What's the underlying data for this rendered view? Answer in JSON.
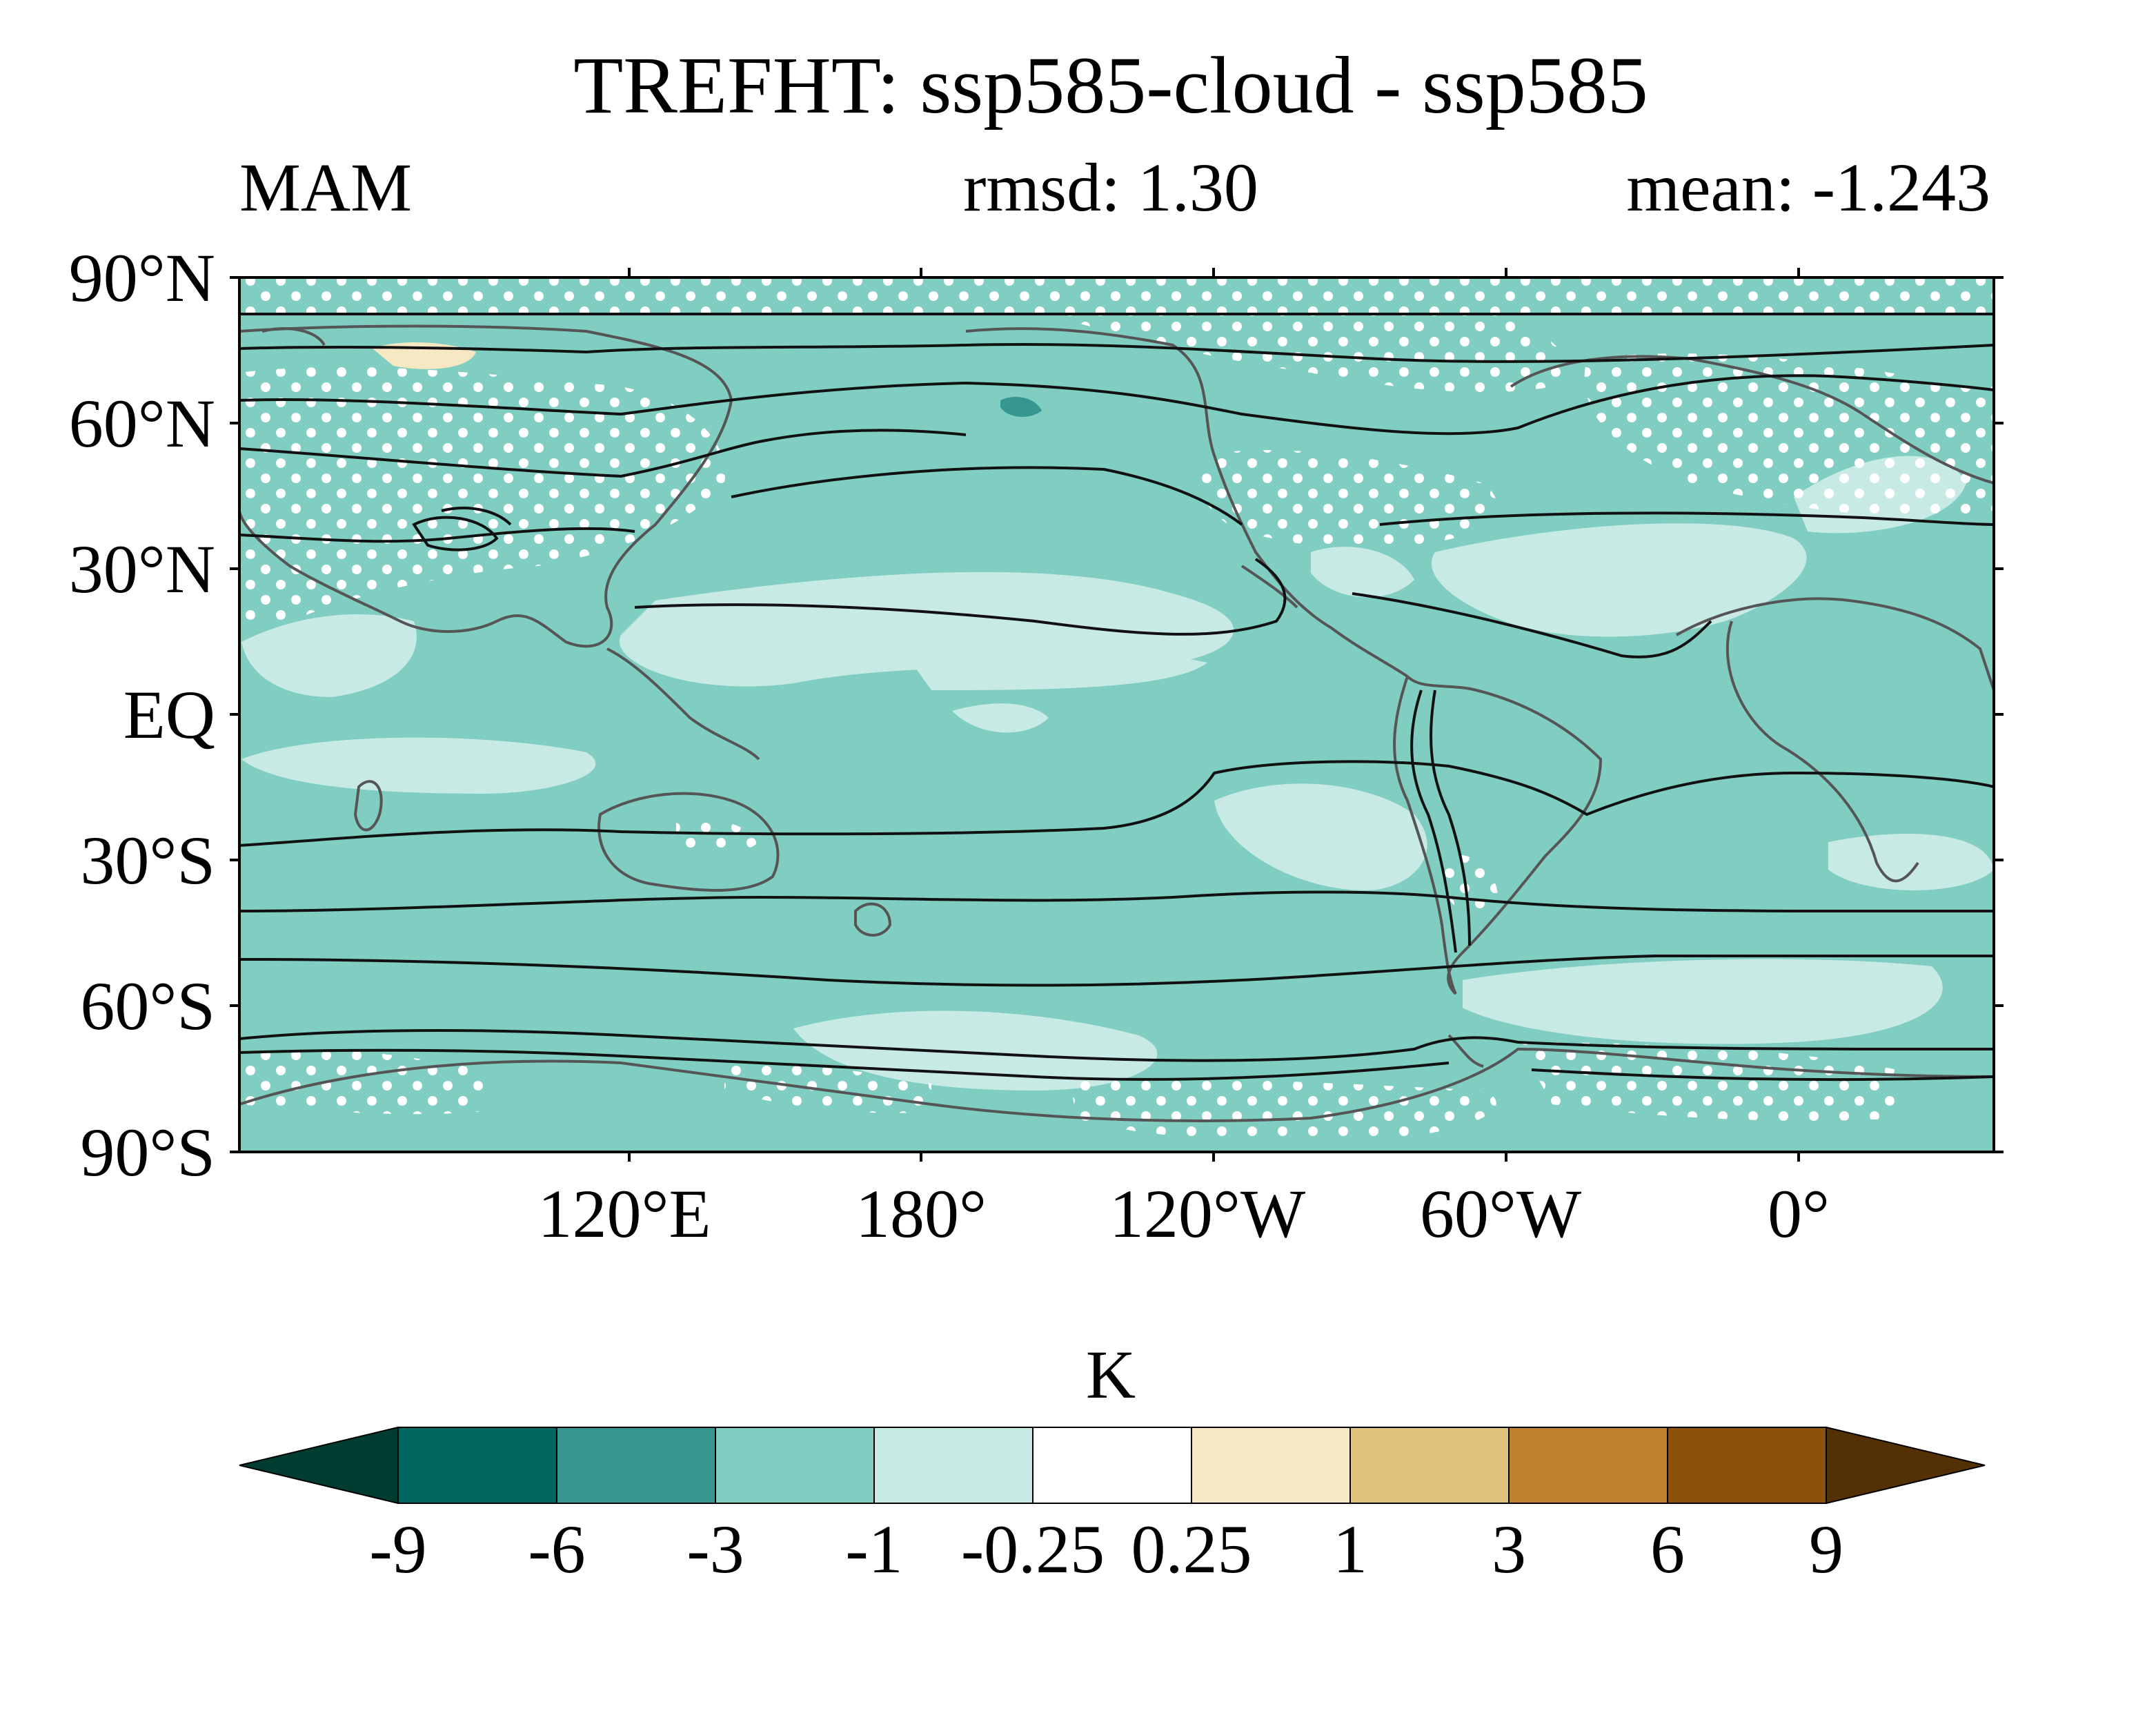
{
  "chart_data": {
    "type": "map",
    "title": "TREFHT: ssp585-cloud - ssp585",
    "season": "MAM",
    "rmsd_label": "rmsd: 1.30",
    "mean_label": "mean: -1.243",
    "rmsd": 1.3,
    "mean": -1.243,
    "lat_ticks": [
      "90°N",
      "60°N",
      "30°N",
      "EQ",
      "30°S",
      "60°S",
      "90°S"
    ],
    "lat_values": [
      90,
      60,
      30,
      0,
      -30,
      -60,
      -90
    ],
    "lon_ticks": [
      "120°E",
      "180°",
      "120°W",
      "60°W",
      "0°"
    ],
    "lon_values": [
      120,
      180,
      240,
      300,
      360
    ],
    "lon_range": [
      40,
      400
    ],
    "colorbar": {
      "unit": "K",
      "levels": [
        -9,
        -6,
        -3,
        -1,
        -0.25,
        0.25,
        1,
        3,
        6,
        9
      ],
      "level_labels": [
        "-9",
        "-6",
        "-3",
        "-1",
        "-0.25",
        "0.25",
        "1",
        "3",
        "6",
        "9"
      ],
      "colors": [
        "#003c30",
        "#01665e",
        "#35978f",
        "#80cdc1",
        "#c7eae5",
        "#ffffff",
        "#f6e8c3",
        "#dfc27d",
        "#bf812d",
        "#8c510a",
        "#543005"
      ]
    },
    "dominant_fill_color": "#80cdc1",
    "stippling": "white dots mark regions (Arctic, Antarctic coast, North America, Europe, Asia)"
  }
}
